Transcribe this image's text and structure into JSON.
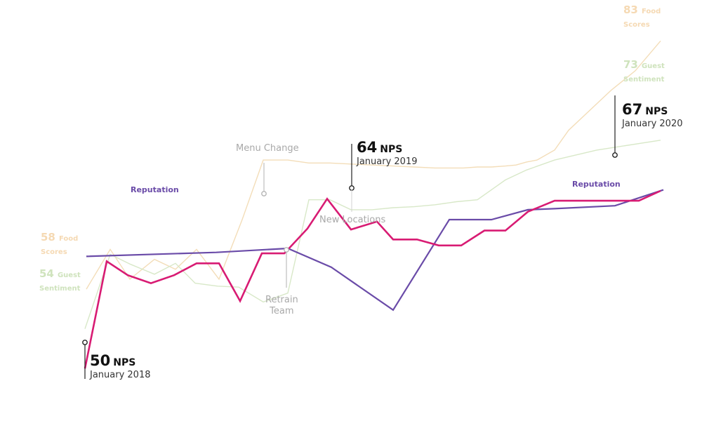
{
  "chart_data": {
    "type": "line",
    "x_start": "January 2018",
    "x_end": "January 2020",
    "ylim": [
      45,
      85
    ],
    "series": [
      {
        "name": "NPS",
        "color": "#d81b73",
        "values": [
          50,
          60.8,
          59.4,
          58.6,
          59.4,
          60.6,
          60.6,
          56.8,
          61.6,
          61.6,
          64.1,
          67.1,
          64,
          64.8,
          63,
          63,
          62.4,
          62.4,
          63.9,
          63.9,
          65.8,
          66.9,
          66.9,
          66.9,
          66.9,
          66.9,
          67.9
        ]
      },
      {
        "name": "Food Scores",
        "color": "#f3ddb8",
        "values": [
          58,
          62,
          59,
          61,
          60,
          62,
          59,
          65,
          71,
          71,
          70.7,
          70.7,
          70.6,
          70.5,
          70.4,
          70.3,
          70.2,
          70.2,
          70.2,
          70.3,
          70.3,
          70.4,
          70.5,
          70.8,
          71,
          72,
          74,
          76,
          78,
          80,
          83
        ]
      },
      {
        "name": "Guest Sentiment",
        "color": "#d8e8c8",
        "values": [
          54,
          61.5,
          60.5,
          59.5,
          60.6,
          58.6,
          58.3,
          58.2,
          56.7,
          57.6,
          67,
          67,
          66,
          66,
          66.2,
          66.3,
          66.5,
          66.8,
          67,
          68,
          69,
          70,
          71,
          72,
          73
        ]
      },
      {
        "name": "Reputation",
        "color": "#6a4ba8",
        "values": [
          61.3,
          61.7,
          62.1,
          60.2,
          55.9,
          65,
          65,
          66,
          66.1,
          66.4,
          68
        ]
      }
    ],
    "annotations": {
      "nps": [
        {
          "value": "50",
          "unit": "NPS",
          "date": "January 2018"
        },
        {
          "value": "64",
          "unit": "NPS",
          "date": "January 2019"
        },
        {
          "value": "67",
          "unit": "NPS",
          "date": "January 2020"
        }
      ],
      "events": [
        {
          "label": "Menu Change"
        },
        {
          "label": "Retrain\nTeam"
        },
        {
          "label": "New Locations"
        }
      ],
      "series_start_labels": [
        {
          "value": "58",
          "text1": "Food",
          "text2": "Scores",
          "color": "#f5d9b3"
        },
        {
          "value": "54",
          "text1": "Guest",
          "text2": "Sentiment",
          "color": "#cfe3bd"
        }
      ],
      "series_end_labels": [
        {
          "value": "83",
          "text1": "Food",
          "text2": "Scores",
          "color": "#f5d9b3"
        },
        {
          "value": "73",
          "text1": "Guest",
          "text2": "Sentiment",
          "color": "#cfe3bd"
        }
      ],
      "reputation_labels": [
        "Reputation",
        "Reputation"
      ]
    }
  }
}
